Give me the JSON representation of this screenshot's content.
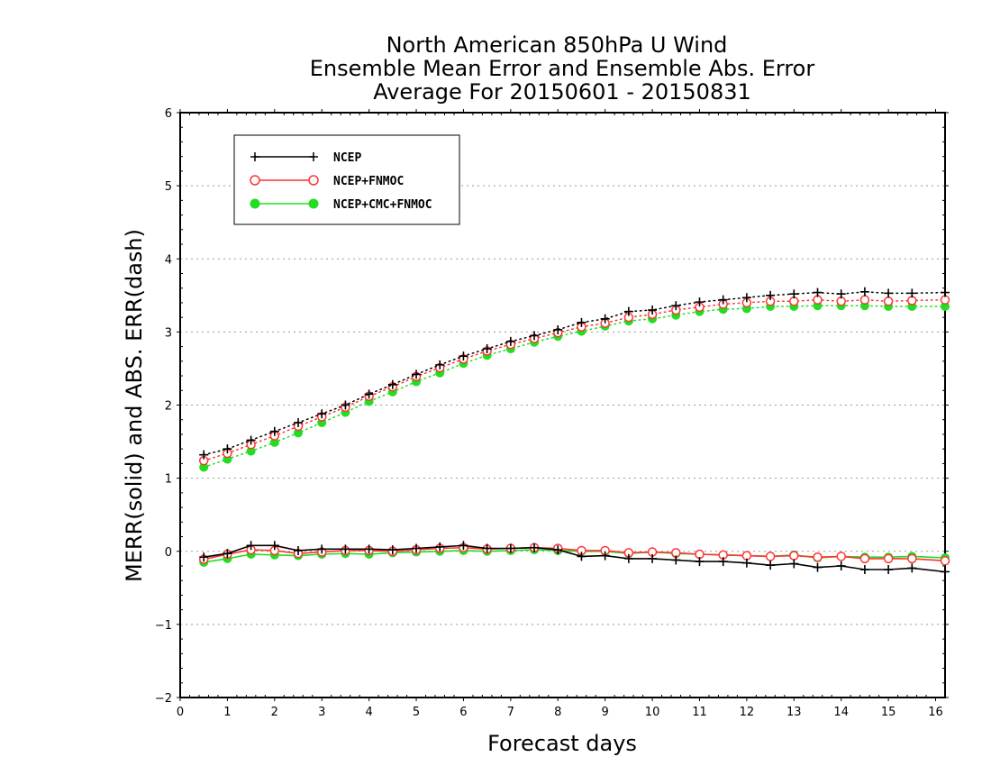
{
  "chart_data": {
    "type": "line",
    "title": [
      "North American 850hPa U Wind",
      "Ensemble Mean Error and Ensemble Abs. Error",
      "Average For 20150601 - 20150831"
    ],
    "xlabel": "Forecast days",
    "ylabel": "MERR(solid) and ABS. ERR(dash)",
    "xlim": [
      0,
      16.2
    ],
    "ylim": [
      -2,
      6
    ],
    "xticks": [
      "0",
      "1",
      "2",
      "3",
      "4",
      "5",
      "6",
      "7",
      "8",
      "9",
      "10",
      "11",
      "12",
      "13",
      "14",
      "15",
      "16"
    ],
    "yticks": [
      "6",
      "5",
      "4",
      "3",
      "2",
      "1",
      "0",
      "−1",
      "−2"
    ],
    "grid": "horizontal dotted",
    "legend_position": "top-left",
    "x": [
      0.5,
      1,
      1.5,
      2,
      2.5,
      3,
      3.5,
      4,
      4.5,
      5,
      5.5,
      6,
      6.5,
      7,
      7.5,
      8,
      8.5,
      9,
      9.5,
      10,
      10.5,
      11,
      11.5,
      12,
      12.5,
      13,
      13.5,
      14,
      14.5,
      15,
      15.5,
      16.2
    ],
    "series": [
      {
        "name": "NCEP",
        "color": "#000000",
        "marker": "plus",
        "merr": [
          -0.08,
          -0.03,
          0.08,
          0.08,
          0.01,
          0.03,
          0.03,
          0.03,
          0.02,
          0.04,
          0.06,
          0.08,
          0.04,
          0.04,
          0.05,
          0.02,
          -0.07,
          -0.06,
          -0.1,
          -0.1,
          -0.12,
          -0.14,
          -0.14,
          -0.16,
          -0.19,
          -0.17,
          -0.22,
          -0.2,
          -0.25,
          -0.25,
          -0.23,
          -0.28
        ],
        "abs_err": [
          1.32,
          1.4,
          1.52,
          1.64,
          1.76,
          1.88,
          2.0,
          2.15,
          2.28,
          2.42,
          2.55,
          2.67,
          2.77,
          2.87,
          2.95,
          3.03,
          3.13,
          3.18,
          3.28,
          3.3,
          3.36,
          3.41,
          3.44,
          3.47,
          3.5,
          3.52,
          3.54,
          3.52,
          3.55,
          3.53,
          3.53,
          3.54
        ]
      },
      {
        "name": "NCEP+FNMOC",
        "color": "#ff3333",
        "marker": "open-circle",
        "merr": [
          -0.11,
          -0.04,
          0.02,
          0.01,
          -0.03,
          -0.01,
          0.01,
          0.01,
          0.0,
          0.02,
          0.04,
          0.05,
          0.03,
          0.04,
          0.05,
          0.04,
          0.01,
          0.01,
          -0.02,
          -0.01,
          -0.02,
          -0.04,
          -0.05,
          -0.06,
          -0.07,
          -0.06,
          -0.08,
          -0.07,
          -0.1,
          -0.1,
          -0.1,
          -0.13
        ],
        "abs_err": [
          1.24,
          1.34,
          1.46,
          1.58,
          1.71,
          1.84,
          1.97,
          2.12,
          2.25,
          2.39,
          2.51,
          2.63,
          2.74,
          2.83,
          2.91,
          2.99,
          3.07,
          3.12,
          3.2,
          3.24,
          3.3,
          3.34,
          3.38,
          3.4,
          3.42,
          3.42,
          3.44,
          3.42,
          3.44,
          3.42,
          3.43,
          3.44
        ]
      },
      {
        "name": "NCEP+CMC+FNMOC",
        "color": "#22dd22",
        "marker": "filled-circle",
        "merr": [
          -0.15,
          -0.1,
          -0.04,
          -0.05,
          -0.06,
          -0.04,
          -0.03,
          -0.04,
          -0.02,
          -0.01,
          0.0,
          0.01,
          0.0,
          0.01,
          0.02,
          0.01,
          0.0,
          0.0,
          -0.03,
          -0.01,
          -0.03,
          -0.04,
          -0.05,
          -0.06,
          -0.07,
          -0.05,
          -0.09,
          -0.07,
          -0.08,
          -0.08,
          -0.07,
          -0.09
        ],
        "abs_err": [
          1.15,
          1.26,
          1.37,
          1.49,
          1.62,
          1.76,
          1.9,
          2.05,
          2.18,
          2.32,
          2.44,
          2.57,
          2.68,
          2.77,
          2.86,
          2.94,
          3.01,
          3.08,
          3.15,
          3.18,
          3.23,
          3.28,
          3.31,
          3.32,
          3.35,
          3.35,
          3.36,
          3.36,
          3.36,
          3.35,
          3.35,
          3.35
        ]
      }
    ]
  }
}
